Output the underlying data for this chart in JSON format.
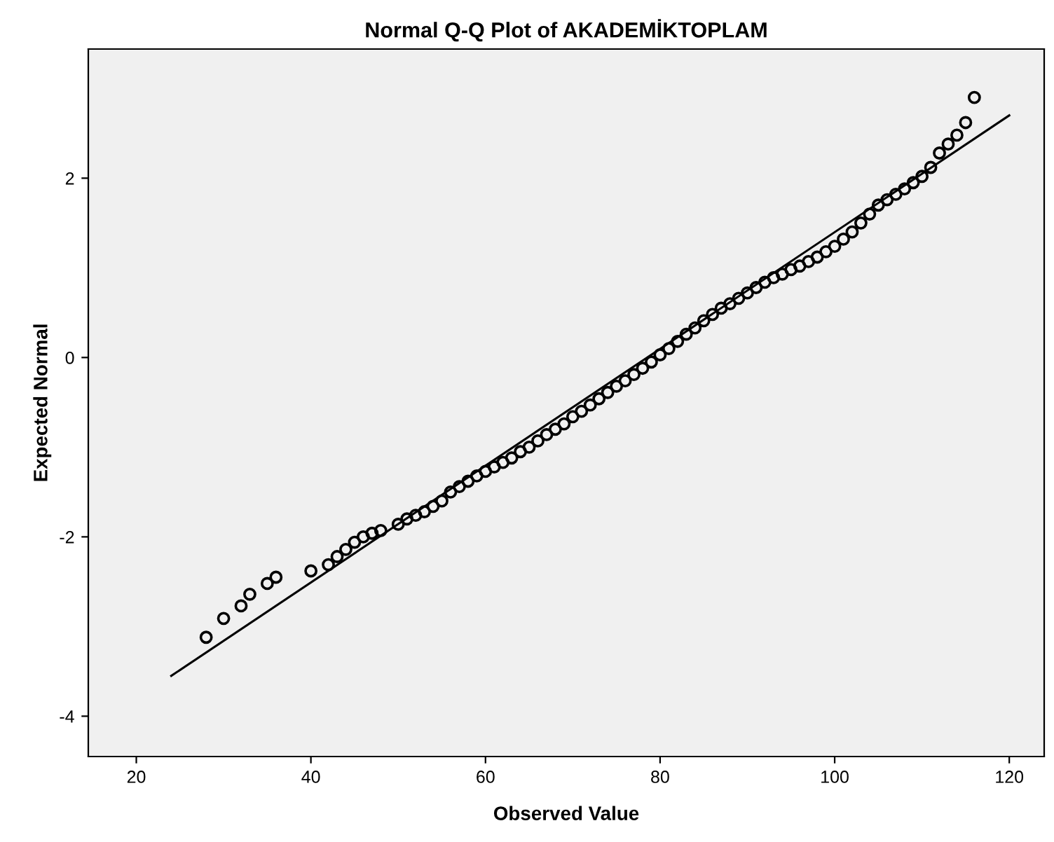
{
  "chart_data": {
    "type": "scatter",
    "title": "Normal Q-Q Plot of AKADEMİKTOPLAM",
    "xlabel": "Observed Value",
    "ylabel": "Expected Normal",
    "xlim": [
      14.5,
      124
    ],
    "ylim": [
      -4.45,
      3.44
    ],
    "xticks": [
      20,
      40,
      60,
      80,
      100,
      120
    ],
    "yticks": [
      -4,
      -2,
      0,
      2
    ],
    "grid": false,
    "legend": false,
    "series": [
      {
        "marker": "circle",
        "color": "#000000",
        "x": [
          28,
          30,
          32,
          33,
          35,
          36,
          40,
          42,
          43,
          44,
          45,
          46,
          47,
          48,
          50,
          51,
          52,
          53,
          54,
          55,
          56,
          57,
          58,
          59,
          60,
          61,
          62,
          63,
          64,
          65,
          66,
          67,
          68,
          69,
          70,
          71,
          72,
          73,
          74,
          75,
          76,
          77,
          78,
          79,
          80,
          81,
          82,
          83,
          84,
          85,
          86,
          87,
          88,
          89,
          90,
          91,
          92,
          93,
          94,
          95,
          96,
          97,
          98,
          99,
          100,
          101,
          102,
          103,
          104,
          105,
          106,
          107,
          108,
          109,
          110,
          111,
          112,
          113,
          114,
          115,
          116
        ],
        "values": [
          -3.12,
          -2.91,
          -2.77,
          -2.64,
          -2.52,
          -2.45,
          -2.38,
          -2.31,
          -2.22,
          -2.14,
          -2.06,
          -2.0,
          -1.96,
          -1.93,
          -1.86,
          -1.8,
          -1.76,
          -1.72,
          -1.66,
          -1.6,
          -1.5,
          -1.44,
          -1.38,
          -1.32,
          -1.27,
          -1.22,
          -1.17,
          -1.12,
          -1.05,
          -1.0,
          -0.93,
          -0.86,
          -0.8,
          -0.74,
          -0.66,
          -0.6,
          -0.53,
          -0.46,
          -0.39,
          -0.32,
          -0.26,
          -0.19,
          -0.12,
          -0.05,
          0.03,
          0.1,
          0.18,
          0.26,
          0.33,
          0.41,
          0.48,
          0.55,
          0.6,
          0.66,
          0.72,
          0.78,
          0.84,
          0.89,
          0.93,
          0.98,
          1.02,
          1.07,
          1.12,
          1.18,
          1.24,
          1.32,
          1.4,
          1.5,
          1.6,
          1.7,
          1.76,
          1.82,
          1.88,
          1.95,
          2.02,
          2.12,
          2.28,
          2.38,
          2.48,
          2.62,
          2.9
        ]
      },
      {
        "type": "line",
        "marker": "none",
        "line_style": "solid",
        "color": "#000000",
        "x": [
          24,
          120
        ],
        "values": [
          -3.55,
          2.7
        ]
      }
    ]
  }
}
